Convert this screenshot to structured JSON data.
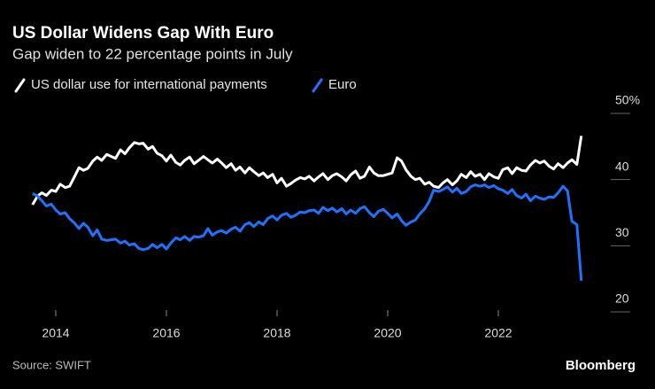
{
  "chart_data": {
    "type": "line",
    "title": "US Dollar Widens Gap With Euro",
    "subtitle": "Gap widen to 22 percentage points in July",
    "source": "Source: SWIFT",
    "brand": "Bloomberg",
    "x": [
      2013.58,
      2013.67,
      2013.75,
      2013.83,
      2013.92,
      2014.0,
      2014.08,
      2014.17,
      2014.25,
      2014.33,
      2014.42,
      2014.5,
      2014.58,
      2014.67,
      2014.75,
      2014.83,
      2014.92,
      2015.0,
      2015.08,
      2015.17,
      2015.25,
      2015.33,
      2015.42,
      2015.5,
      2015.58,
      2015.67,
      2015.75,
      2015.83,
      2015.92,
      2016.0,
      2016.08,
      2016.17,
      2016.25,
      2016.33,
      2016.42,
      2016.5,
      2016.58,
      2016.67,
      2016.75,
      2016.83,
      2016.92,
      2017.0,
      2017.08,
      2017.17,
      2017.25,
      2017.33,
      2017.42,
      2017.5,
      2017.58,
      2017.67,
      2017.75,
      2017.83,
      2017.92,
      2018.0,
      2018.08,
      2018.17,
      2018.25,
      2018.33,
      2018.42,
      2018.5,
      2018.58,
      2018.67,
      2018.75,
      2018.83,
      2018.92,
      2019.0,
      2019.08,
      2019.17,
      2019.25,
      2019.33,
      2019.42,
      2019.5,
      2019.58,
      2019.67,
      2019.75,
      2019.83,
      2019.92,
      2020.0,
      2020.08,
      2020.17,
      2020.25,
      2020.33,
      2020.42,
      2020.5,
      2020.58,
      2020.67,
      2020.75,
      2020.83,
      2020.92,
      2021.0,
      2021.08,
      2021.17,
      2021.25,
      2021.33,
      2021.42,
      2021.5,
      2021.58,
      2021.67,
      2021.75,
      2021.83,
      2021.92,
      2022.0,
      2022.08,
      2022.17,
      2022.25,
      2022.33,
      2022.42,
      2022.5,
      2022.58,
      2022.67,
      2022.75,
      2022.83,
      2022.92,
      2023.0,
      2023.08,
      2023.17,
      2023.25,
      2023.33,
      2023.42,
      2023.5
    ],
    "series": [
      {
        "name": "US dollar use for international payments",
        "color": "#ffffff",
        "values": [
          36.2,
          37.5,
          38.0,
          37.6,
          38.4,
          38.2,
          39.3,
          38.8,
          39.0,
          40.3,
          41.8,
          41.4,
          41.7,
          42.8,
          43.4,
          42.9,
          43.8,
          43.5,
          43.2,
          44.5,
          43.9,
          44.8,
          45.6,
          45.4,
          45.5,
          44.6,
          45.0,
          44.0,
          43.6,
          42.8,
          43.7,
          42.6,
          42.2,
          42.9,
          43.4,
          42.4,
          42.9,
          43.5,
          43.0,
          42.5,
          43.1,
          42.5,
          41.8,
          42.4,
          41.4,
          41.9,
          41.0,
          41.8,
          41.2,
          40.6,
          41.0,
          40.3,
          40.8,
          39.5,
          40.2,
          39.0,
          39.4,
          39.9,
          40.3,
          40.1,
          40.5,
          39.8,
          40.4,
          40.9,
          40.0,
          40.6,
          40.9,
          40.4,
          39.8,
          40.7,
          41.3,
          40.2,
          40.5,
          41.9,
          41.0,
          40.6,
          40.6,
          40.8,
          41.0,
          43.3,
          42.8,
          41.5,
          40.5,
          40.0,
          40.2,
          39.3,
          39.6,
          39.0,
          38.8,
          39.5,
          40.0,
          39.2,
          39.8,
          40.8,
          40.3,
          41.2,
          40.5,
          40.8,
          40.0,
          40.9,
          40.4,
          40.2,
          41.5,
          41.8,
          40.9,
          41.8,
          41.4,
          41.3,
          42.2,
          42.9,
          42.5,
          42.8,
          42.0,
          41.6,
          42.4,
          41.8,
          42.5,
          43.0,
          42.3,
          46.6
        ]
      },
      {
        "name": "Euro",
        "color": "#1f72ff",
        "values": [
          37.9,
          37.5,
          36.8,
          36.0,
          36.3,
          35.4,
          34.8,
          35.0,
          34.1,
          33.5,
          32.6,
          33.4,
          32.8,
          31.5,
          32.4,
          31.0,
          30.8,
          30.9,
          31.0,
          30.4,
          30.7,
          30.1,
          30.3,
          29.6,
          29.4,
          29.6,
          30.2,
          29.7,
          30.2,
          29.5,
          30.4,
          31.2,
          30.9,
          31.4,
          30.8,
          31.4,
          31.3,
          31.5,
          32.6,
          31.6,
          32.1,
          32.3,
          31.9,
          32.5,
          32.8,
          32.2,
          33.2,
          33.5,
          32.9,
          33.6,
          33.2,
          34.1,
          34.5,
          33.9,
          34.6,
          34.9,
          34.3,
          34.6,
          35.1,
          35.0,
          35.3,
          35.4,
          34.9,
          35.8,
          35.3,
          35.7,
          35.1,
          35.6,
          34.8,
          35.4,
          34.9,
          35.6,
          35.9,
          35.0,
          34.4,
          35.2,
          35.5,
          34.9,
          34.2,
          34.8,
          33.8,
          33.1,
          33.6,
          33.9,
          34.8,
          35.6,
          36.7,
          38.4,
          38.2,
          38.5,
          38.9,
          38.1,
          38.7,
          37.9,
          38.2,
          38.9,
          39.2,
          39.0,
          39.2,
          38.8,
          39.1,
          38.6,
          38.4,
          37.9,
          38.5,
          37.6,
          37.2,
          37.8,
          36.8,
          37.5,
          37.2,
          37.0,
          37.4,
          37.3,
          38.0,
          39.0,
          38.3,
          33.7,
          33.2,
          24.7
        ]
      }
    ],
    "xlim": [
      2013.5,
      2023.7
    ],
    "xticks": [
      2014,
      2016,
      2018,
      2020,
      2022
    ],
    "ylim": [
      20,
      50
    ],
    "yticks": [
      20,
      30,
      40,
      {
        "value": 50,
        "label": "50%"
      }
    ]
  }
}
